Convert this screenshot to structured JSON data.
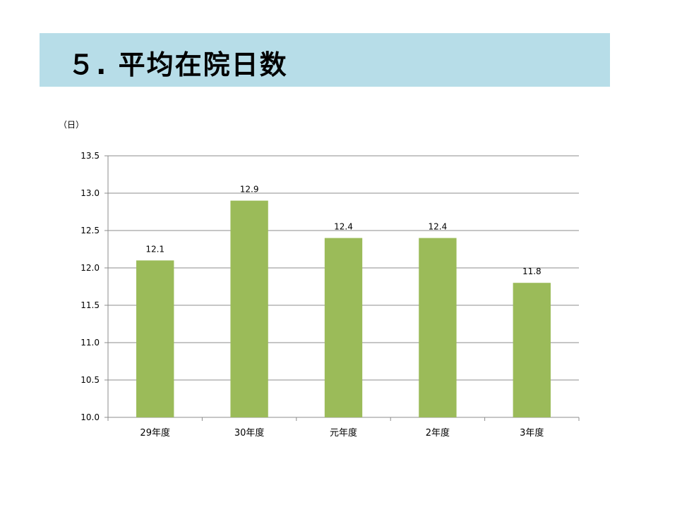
{
  "page": {
    "title": "５. 平均在院日数",
    "title_bg_color": "#b7dde8"
  },
  "chart_data": {
    "type": "bar",
    "ylabel": "（日）",
    "categories": [
      "29年度",
      "30年度",
      "元年度",
      "2年度",
      "3年度"
    ],
    "values": [
      12.1,
      12.9,
      12.4,
      12.4,
      11.8
    ],
    "data_labels": [
      "12.1",
      "12.9",
      "12.4",
      "12.4",
      "11.8"
    ],
    "ylim": [
      10.0,
      13.5
    ],
    "yticks": [
      10.0,
      10.5,
      11.0,
      11.5,
      12.0,
      12.5,
      13.0,
      13.5
    ],
    "ytick_labels": [
      "10.0",
      "10.5",
      "11.0",
      "11.5",
      "12.0",
      "12.5",
      "13.0",
      "13.5"
    ],
    "grid": true,
    "legend": "none",
    "bar_color": "#9bbb59",
    "grid_color": "#8c8c8c"
  }
}
